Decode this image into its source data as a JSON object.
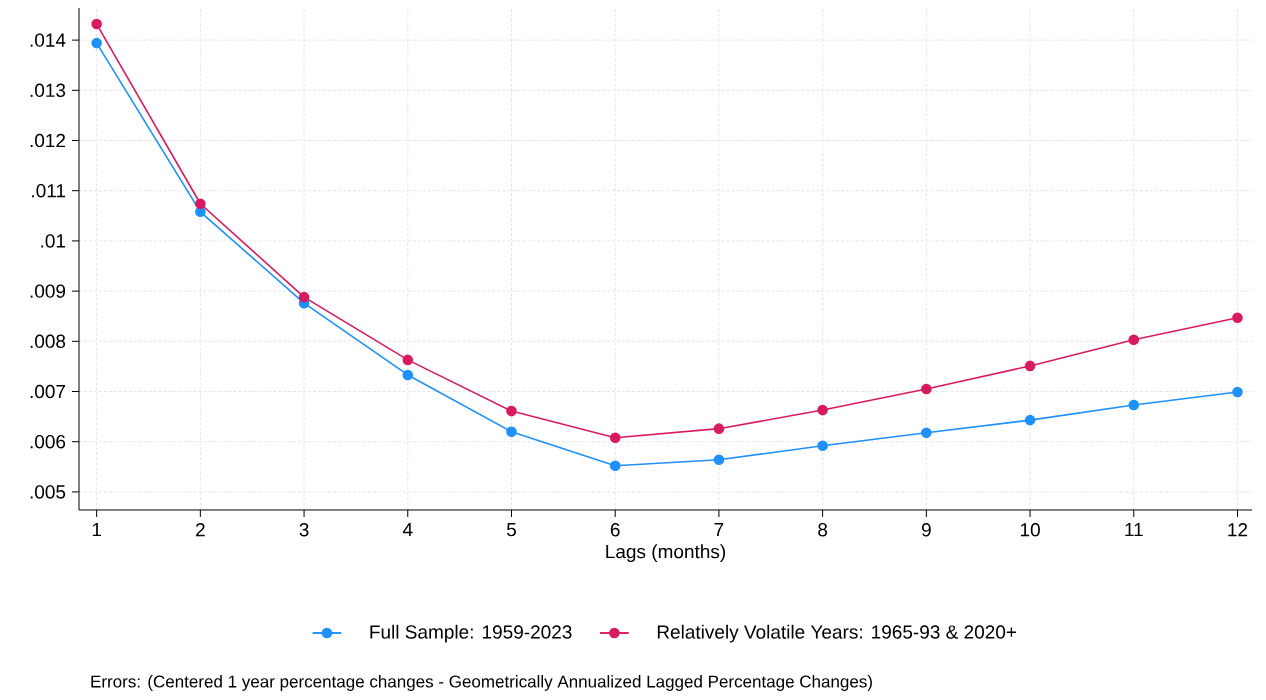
{
  "chart_data": {
    "type": "line",
    "xlabel": "Lags (months)",
    "x": [
      1,
      2,
      3,
      4,
      5,
      6,
      7,
      8,
      9,
      10,
      11,
      12
    ],
    "series": [
      {
        "name": "Full Sample: 1959-2023",
        "color": "#1e90ff",
        "values": [
          0.01394,
          0.01058,
          0.00876,
          0.00733,
          0.0062,
          0.00552,
          0.00564,
          0.00592,
          0.00618,
          0.00643,
          0.00673,
          0.00699
        ]
      },
      {
        "name": "Relatively Volatile Years: 1965-93 & 2020+",
        "color": "#d81b60",
        "values": [
          0.01432,
          0.01074,
          0.00888,
          0.00763,
          0.00661,
          0.00608,
          0.00626,
          0.00663,
          0.00705,
          0.00751,
          0.00803,
          0.00847
        ]
      }
    ],
    "xlim": [
      0.83,
      12.14
    ],
    "ylim": [
      0.00464,
      0.01464
    ],
    "xticks": [
      1,
      2,
      3,
      4,
      5,
      6,
      7,
      8,
      9,
      10,
      11,
      12
    ],
    "yticks": [
      {
        "value": 0.005,
        "label": ".005"
      },
      {
        "value": 0.006,
        "label": ".006"
      },
      {
        "value": 0.007,
        "label": ".007"
      },
      {
        "value": 0.008,
        "label": ".008"
      },
      {
        "value": 0.009,
        "label": ".009"
      },
      {
        "value": 0.01,
        "label": ".01"
      },
      {
        "value": 0.011,
        "label": ".011"
      },
      {
        "value": 0.012,
        "label": ".012"
      },
      {
        "value": 0.013,
        "label": ".013"
      },
      {
        "value": 0.014,
        "label": ".014"
      }
    ],
    "grid": true,
    "legend": "bottom",
    "marker": "circle",
    "line_style": "solid",
    "annotations": [
      "Errors: (Centered 1 year percentage changes - Geometrically Annualized Lagged Percentage Changes)"
    ]
  }
}
